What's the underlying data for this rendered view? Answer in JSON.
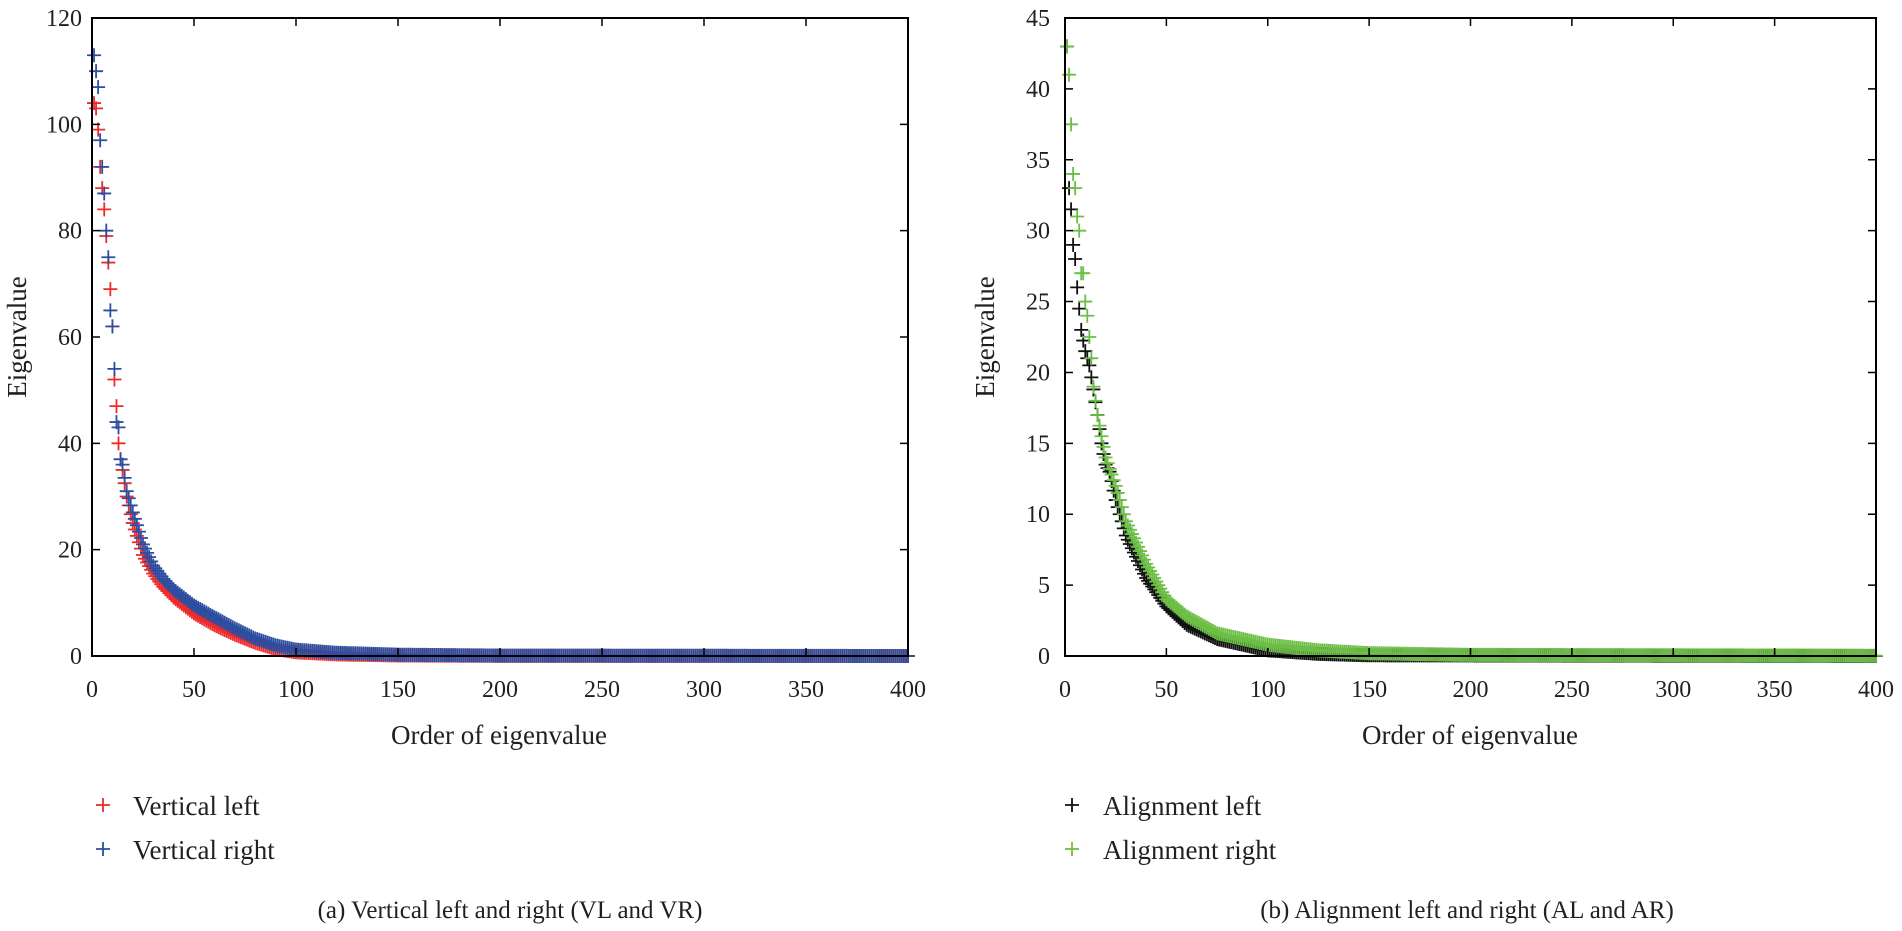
{
  "chart_data": [
    {
      "type": "scatter",
      "marker": "plus",
      "xlabel": "Order of eigenvalue",
      "ylabel": "Eigenvalue",
      "xlim": [
        0,
        400
      ],
      "ylim": [
        0,
        120
      ],
      "xticks": [
        0,
        50,
        100,
        150,
        200,
        250,
        300,
        350,
        400
      ],
      "yticks": [
        0,
        20,
        40,
        60,
        80,
        100,
        120
      ],
      "x_range_points": [
        1,
        400
      ],
      "legend_placement": "below-left",
      "caption": "(a)  Vertical left and right (VL and VR)",
      "series": [
        {
          "name": "Vertical left",
          "color": "#ee2a2a",
          "anchors": [
            [
              1,
              104
            ],
            [
              2,
              103
            ],
            [
              3,
              99
            ],
            [
              4,
              92
            ],
            [
              5,
              88
            ],
            [
              6,
              84
            ],
            [
              7,
              79
            ],
            [
              8,
              74
            ],
            [
              9,
              69
            ],
            [
              10,
              62
            ],
            [
              11,
              52
            ],
            [
              12,
              47
            ],
            [
              13,
              40
            ],
            [
              14,
              37
            ],
            [
              15,
              35
            ],
            [
              17,
              30
            ],
            [
              20,
              25
            ],
            [
              25,
              19
            ],
            [
              30,
              15.5
            ],
            [
              35,
              13
            ],
            [
              40,
              11
            ],
            [
              50,
              8
            ],
            [
              60,
              5.8
            ],
            [
              70,
              4
            ],
            [
              80,
              2.5
            ],
            [
              90,
              1.3
            ],
            [
              100,
              0.7
            ],
            [
              120,
              0.3
            ],
            [
              150,
              0.1
            ],
            [
              200,
              0.03
            ],
            [
              400,
              0
            ]
          ]
        },
        {
          "name": "Vertical right",
          "color": "#2d4ea0",
          "anchors": [
            [
              1,
              113
            ],
            [
              2,
              110
            ],
            [
              3,
              107
            ],
            [
              4,
              97
            ],
            [
              5,
              92
            ],
            [
              6,
              87
            ],
            [
              7,
              80
            ],
            [
              8,
              75
            ],
            [
              9,
              65
            ],
            [
              10,
              62
            ],
            [
              11,
              54
            ],
            [
              12,
              44
            ],
            [
              13,
              43
            ],
            [
              14,
              37
            ],
            [
              15,
              36
            ],
            [
              17,
              31
            ],
            [
              20,
              27
            ],
            [
              25,
              21
            ],
            [
              30,
              17
            ],
            [
              35,
              14.5
            ],
            [
              40,
              12.5
            ],
            [
              50,
              9.5
            ],
            [
              60,
              7.3
            ],
            [
              70,
              5.2
            ],
            [
              80,
              3.3
            ],
            [
              90,
              2
            ],
            [
              100,
              1.2
            ],
            [
              120,
              0.6
            ],
            [
              150,
              0.25
            ],
            [
              200,
              0.08
            ],
            [
              400,
              0
            ]
          ]
        }
      ]
    },
    {
      "type": "scatter",
      "marker": "plus",
      "xlabel": "Order of eigenvalue",
      "ylabel": "Eigenvalue",
      "xlim": [
        0,
        400
      ],
      "ylim": [
        0,
        45
      ],
      "xticks": [
        0,
        50,
        100,
        150,
        200,
        250,
        300,
        350,
        400
      ],
      "yticks": [
        0,
        5,
        10,
        15,
        20,
        25,
        30,
        35,
        40,
        45
      ],
      "x_range_points": [
        1,
        400
      ],
      "legend_placement": "below-left",
      "caption": "(b)  Alignment left and right (AL and AR)",
      "series": [
        {
          "name": "Alignment left",
          "color": "#111111",
          "anchors": [
            [
              1,
              43
            ],
            [
              2,
              33
            ],
            [
              3,
              31.5
            ],
            [
              4,
              29
            ],
            [
              5,
              28
            ],
            [
              6,
              26
            ],
            [
              7,
              24.5
            ],
            [
              8,
              23
            ],
            [
              10,
              21.5
            ],
            [
              12,
              20.5
            ],
            [
              14,
              18.8
            ],
            [
              16,
              17
            ],
            [
              18,
              15
            ],
            [
              20,
              13.5
            ],
            [
              22,
              13
            ],
            [
              25,
              11
            ],
            [
              30,
              8.5
            ],
            [
              35,
              7
            ],
            [
              40,
              5.5
            ],
            [
              50,
              3.5
            ],
            [
              60,
              2.2
            ],
            [
              75,
              1.2
            ],
            [
              100,
              0.4
            ],
            [
              125,
              0.15
            ],
            [
              150,
              0.05
            ],
            [
              400,
              0
            ]
          ]
        },
        {
          "name": "Alignment right",
          "color": "#6cbf45",
          "anchors": [
            [
              1,
              43
            ],
            [
              2,
              41
            ],
            [
              3,
              37.5
            ],
            [
              4,
              34
            ],
            [
              5,
              33
            ],
            [
              6,
              31
            ],
            [
              7,
              30
            ],
            [
              8,
              27
            ],
            [
              9,
              27
            ],
            [
              10,
              25
            ],
            [
              11,
              24
            ],
            [
              12,
              22.5
            ],
            [
              13,
              21
            ],
            [
              14,
              19
            ],
            [
              16,
              17
            ],
            [
              18,
              15.5
            ],
            [
              20,
              14
            ],
            [
              25,
              12
            ],
            [
              30,
              9.5
            ],
            [
              35,
              8
            ],
            [
              40,
              6.5
            ],
            [
              50,
              4
            ],
            [
              60,
              2.8
            ],
            [
              75,
              1.6
            ],
            [
              100,
              0.8
            ],
            [
              125,
              0.4
            ],
            [
              150,
              0.2
            ],
            [
              200,
              0.08
            ],
            [
              400,
              0.02
            ]
          ]
        }
      ]
    }
  ]
}
